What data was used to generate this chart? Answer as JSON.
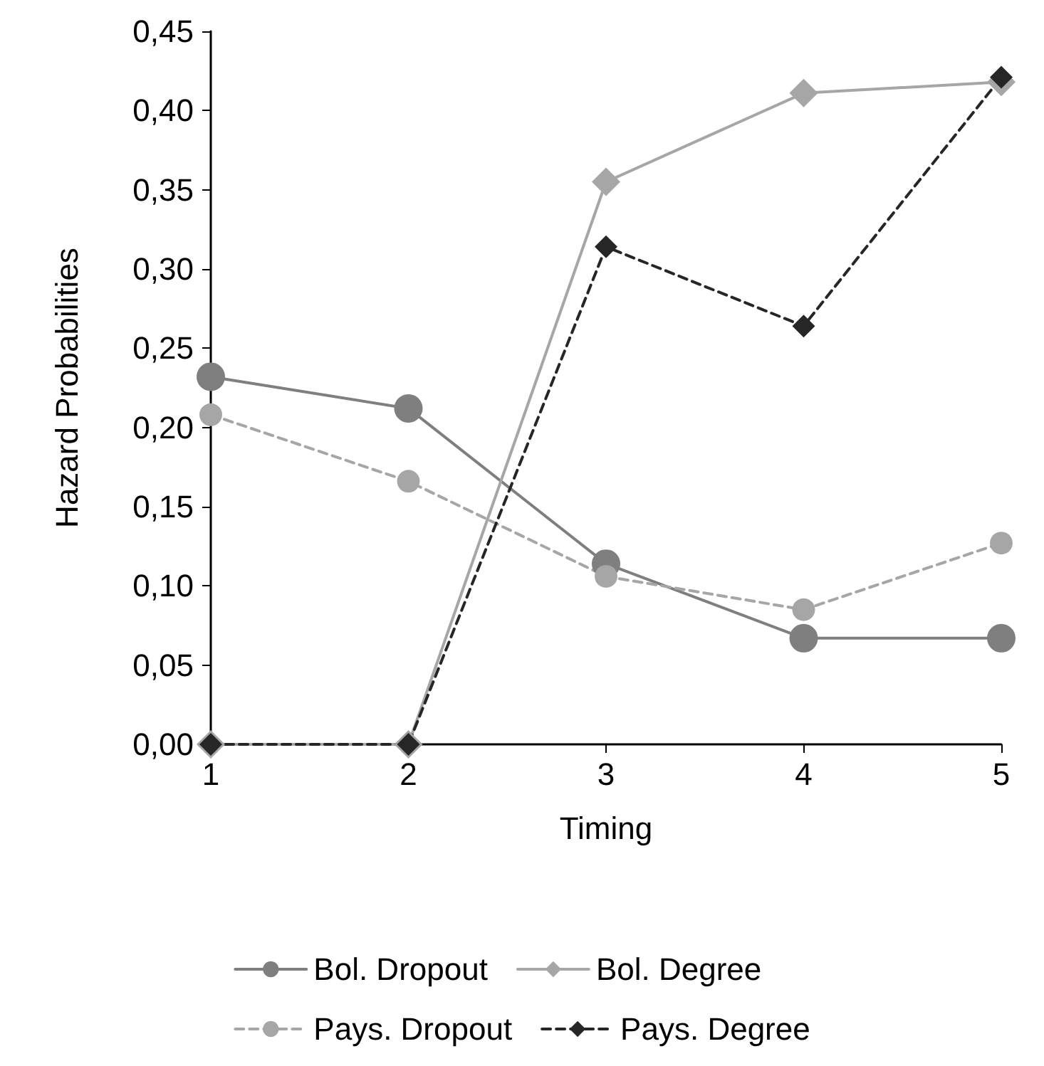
{
  "chart_data": {
    "type": "line",
    "xlabel": "Timing",
    "ylabel": "Hazard Probabilities",
    "x": [
      1,
      2,
      3,
      4,
      5
    ],
    "xlim": [
      1,
      5
    ],
    "xticks": [
      1,
      2,
      3,
      4,
      5
    ],
    "ylim": [
      0,
      0.45
    ],
    "yticks": [
      {
        "value": 0,
        "label": "0,00"
      },
      {
        "value": 0.05,
        "label": "0,05"
      },
      {
        "value": 0.1,
        "label": "0,10"
      },
      {
        "value": 0.15,
        "label": "0,15"
      },
      {
        "value": 0.2,
        "label": "0,20"
      },
      {
        "value": 0.25,
        "label": "0,25"
      },
      {
        "value": 0.3,
        "label": "0,30"
      },
      {
        "value": 0.35,
        "label": "0,35"
      },
      {
        "value": 0.4,
        "label": "0,40"
      },
      {
        "value": 0.45,
        "label": "0,45"
      }
    ],
    "grid": false,
    "legend": "bottom",
    "series": [
      {
        "name": "Bol. Dropout",
        "color": "#7f7f7f",
        "marker": "circle",
        "line_style": "solid",
        "values": [
          0.232,
          0.212,
          0.114,
          0.067,
          0.067
        ]
      },
      {
        "name": "Bol. Degree",
        "color": "#a6a6a6",
        "marker": "diamond",
        "line_style": "solid",
        "values": [
          0,
          0,
          0.355,
          0.411,
          0.418
        ]
      },
      {
        "name": "Pays. Dropout",
        "color": "#a6a6a6",
        "marker": "circle",
        "line_style": "dashed",
        "values": [
          0.208,
          0.166,
          0.106,
          0.085,
          0.127
        ]
      },
      {
        "name": "Pays. Degree",
        "color": "#262626",
        "marker": "diamond",
        "line_style": "dashed",
        "values": [
          0,
          0,
          0.314,
          0.264,
          0.421
        ]
      }
    ]
  }
}
